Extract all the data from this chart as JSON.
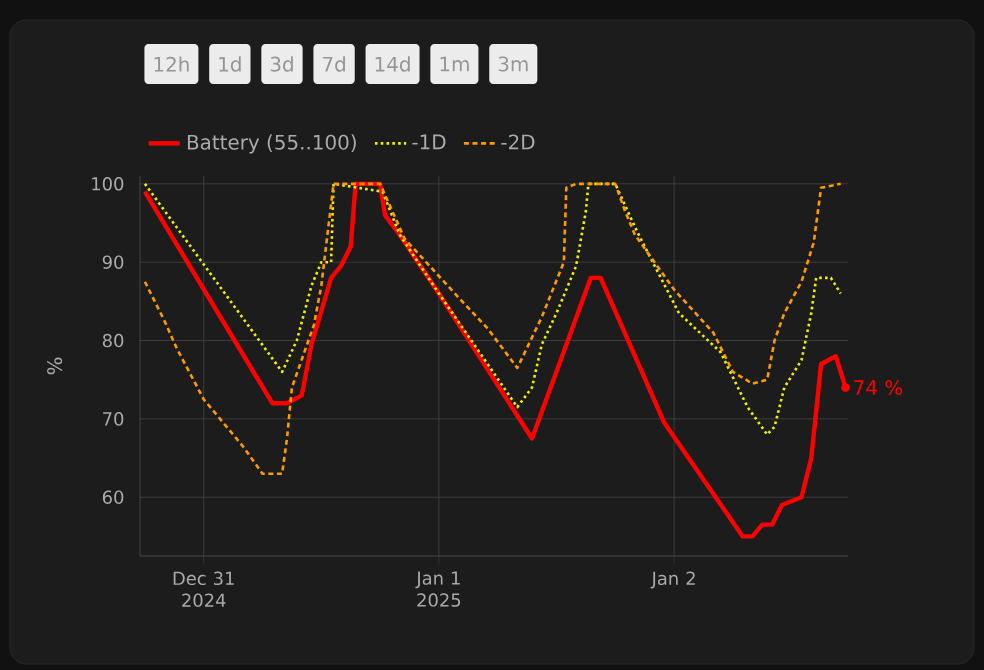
{
  "chart_data": {
    "type": "line",
    "ylabel": "%",
    "annotations": [
      "12h",
      "1d",
      "3d",
      "7d",
      "14d",
      "1m",
      "3m",
      {
        "text": "74 %",
        "x": "2025-01-02T17:30",
        "y": 74
      }
    ],
    "xlim": [
      "2024-12-30T17:30",
      "2025-01-02T17:45"
    ],
    "xticks": [
      {
        "value": "2024-12-31",
        "label": "Dec 31 2024"
      },
      {
        "value": "2025-01-01",
        "label": "Jan 1 2025"
      },
      {
        "value": "2025-01-02",
        "label": "Jan 2"
      }
    ],
    "ylim": [
      52.5,
      101
    ],
    "yticks": [
      60,
      70,
      80,
      90,
      100
    ],
    "grid": true,
    "legend": "top left",
    "series": [
      {
        "name": "Battery (55..100)",
        "color": "#ff0000",
        "line_style": "solid",
        "x": [
          "2024-12-30T18:00",
          "2024-12-31T07:00",
          "2024-12-31T08:30",
          "2024-12-31T10:00",
          "2024-12-31T11:00",
          "2024-12-31T13:00",
          "2024-12-31T14:00",
          "2024-12-31T15:00",
          "2024-12-31T15:30",
          "2024-12-31T18:00",
          "2024-12-31T18:30",
          "2024-12-31T20:00",
          "2025-01-01T00:00",
          "2025-01-01T09:30",
          "2025-01-01T15:30",
          "2025-01-01T16:30",
          "2025-01-01T23:00",
          "2025-01-02T07:00",
          "2025-01-02T08:00",
          "2025-01-02T09:00",
          "2025-01-02T10:00",
          "2025-01-02T11:00",
          "2025-01-02T13:00",
          "2025-01-02T14:00",
          "2025-01-02T15:00",
          "2025-01-02T16:30",
          "2025-01-02T17:30"
        ],
        "values": [
          99,
          72,
          72,
          73,
          79.5,
          88,
          89.5,
          92,
          100,
          100,
          96,
          93.5,
          86,
          67.5,
          88,
          88,
          69.5,
          55,
          55,
          56.5,
          56.5,
          59,
          60,
          65,
          77,
          78,
          74
        ]
      },
      {
        "name": "-1D",
        "color": "#f0f000",
        "line_style": "dotted",
        "x": [
          "2024-12-30T18:00",
          "2024-12-31T08:00",
          "2024-12-31T09:30",
          "2024-12-31T11:00",
          "2024-12-31T12:00",
          "2024-12-31T13:00",
          "2024-12-31T13:15",
          "2024-12-31T18:15",
          "2024-12-31T20:00",
          "2025-01-01T00:00",
          "2025-01-01T08:00",
          "2025-01-01T09:30",
          "2025-01-01T10:30",
          "2025-01-01T12:00",
          "2025-01-01T14:00",
          "2025-01-01T15:00",
          "2025-01-01T15:15",
          "2025-01-01T18:00",
          "2025-01-01T20:00",
          "2025-01-01T21:00",
          "2025-01-02T00:30",
          "2025-01-02T04:45",
          "2025-01-02T07:30",
          "2025-01-02T09:30",
          "2025-01-02T10:15",
          "2025-01-02T11:15",
          "2025-01-02T13:00",
          "2025-01-02T14:00",
          "2025-01-02T14:30",
          "2025-01-02T16:00",
          "2025-01-02T17:00"
        ],
        "values": [
          100,
          76,
          80,
          87,
          90,
          90,
          100,
          99,
          93.5,
          86,
          71.5,
          74,
          79.5,
          83.5,
          89.5,
          96.5,
          100,
          100,
          94.5,
          92,
          83.5,
          78.5,
          71.5,
          68,
          69,
          74,
          77.5,
          83.5,
          88,
          88,
          86
        ]
      },
      {
        "name": "-2D",
        "color": "#ff9900",
        "line_style": "dashed",
        "x": [
          "2024-12-30T18:00",
          "2024-12-30T20:00",
          "2024-12-30T21:15",
          "2024-12-31T00:00",
          "2024-12-31T04:00",
          "2024-12-31T06:00",
          "2024-12-31T08:00",
          "2024-12-31T08:30",
          "2024-12-31T09:00",
          "2024-12-31T11:15",
          "2024-12-31T12:00",
          "2024-12-31T13:15",
          "2024-12-31T18:00",
          "2024-12-31T20:30",
          "2025-01-01T02:00",
          "2025-01-01T05:00",
          "2025-01-01T08:00",
          "2025-01-01T10:30",
          "2025-01-01T12:45",
          "2025-01-01T13:00",
          "2025-01-01T14:00",
          "2025-01-01T18:00",
          "2025-01-01T19:00",
          "2025-01-01T20:00",
          "2025-01-02T00:00",
          "2025-01-02T04:00",
          "2025-01-02T06:00",
          "2025-01-02T08:00",
          "2025-01-02T09:30",
          "2025-01-02T10:15",
          "2025-01-02T11:15",
          "2025-01-02T13:00",
          "2025-01-02T14:15",
          "2025-01-02T15:00",
          "2025-01-02T17:00"
        ],
        "values": [
          87.5,
          82.5,
          79,
          72.5,
          66.5,
          63,
          63,
          67.5,
          74,
          82,
          87,
          100,
          100,
          93,
          85.5,
          81.5,
          76.5,
          83,
          90,
          99.5,
          100,
          100,
          96.5,
          93.5,
          86.5,
          81,
          76,
          74.5,
          75,
          80,
          83.5,
          87.5,
          92.5,
          99.5,
          100
        ]
      }
    ]
  }
}
